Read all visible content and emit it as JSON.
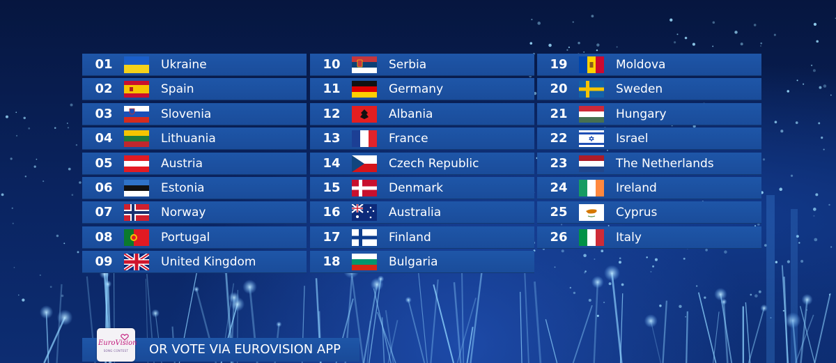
{
  "columns": [
    [
      {
        "rank": "01",
        "country": "Ukraine",
        "flag": "ukraine-flag-icon"
      },
      {
        "rank": "02",
        "country": "Spain",
        "flag": "spain-flag-icon"
      },
      {
        "rank": "03",
        "country": "Slovenia",
        "flag": "slovenia-flag-icon"
      },
      {
        "rank": "04",
        "country": "Lithuania",
        "flag": "lithuania-flag-icon"
      },
      {
        "rank": "05",
        "country": "Austria",
        "flag": "austria-flag-icon"
      },
      {
        "rank": "06",
        "country": "Estonia",
        "flag": "estonia-flag-icon"
      },
      {
        "rank": "07",
        "country": "Norway",
        "flag": "norway-flag-icon"
      },
      {
        "rank": "08",
        "country": "Portugal",
        "flag": "portugal-flag-icon"
      },
      {
        "rank": "09",
        "country": "United Kingdom",
        "flag": "united-kingdom-flag-icon"
      }
    ],
    [
      {
        "rank": "10",
        "country": "Serbia",
        "flag": "serbia-flag-icon"
      },
      {
        "rank": "11",
        "country": "Germany",
        "flag": "germany-flag-icon"
      },
      {
        "rank": "12",
        "country": "Albania",
        "flag": "albania-flag-icon"
      },
      {
        "rank": "13",
        "country": "France",
        "flag": "france-flag-icon"
      },
      {
        "rank": "14",
        "country": "Czech Republic",
        "flag": "czech-republic-flag-icon"
      },
      {
        "rank": "15",
        "country": "Denmark",
        "flag": "denmark-flag-icon"
      },
      {
        "rank": "16",
        "country": "Australia",
        "flag": "australia-flag-icon"
      },
      {
        "rank": "17",
        "country": "Finland",
        "flag": "finland-flag-icon"
      },
      {
        "rank": "18",
        "country": "Bulgaria",
        "flag": "bulgaria-flag-icon"
      }
    ],
    [
      {
        "rank": "19",
        "country": "Moldova",
        "flag": "moldova-flag-icon"
      },
      {
        "rank": "20",
        "country": "Sweden",
        "flag": "sweden-flag-icon"
      },
      {
        "rank": "21",
        "country": "Hungary",
        "flag": "hungary-flag-icon"
      },
      {
        "rank": "22",
        "country": "Israel",
        "flag": "israel-flag-icon"
      },
      {
        "rank": "23",
        "country": "The Netherlands",
        "flag": "netherlands-flag-icon"
      },
      {
        "rank": "24",
        "country": "Ireland",
        "flag": "ireland-flag-icon"
      },
      {
        "rank": "25",
        "country": "Cyprus",
        "flag": "cyprus-flag-icon"
      },
      {
        "rank": "26",
        "country": "Italy",
        "flag": "italy-flag-icon"
      }
    ]
  ],
  "banner": {
    "text": "OR VOTE VIA EUROVISION APP"
  },
  "logo": {
    "wordmark": "EuroVision",
    "subtitle": "SONG CONTEST",
    "icon": "eurovision-heart-logo-icon"
  },
  "colors": {
    "row_background": "#1e56a8",
    "text": "#ffffff",
    "background_top": "#06163f",
    "background_bottom": "#0d2d72",
    "logo_accent": "#c2187a"
  }
}
